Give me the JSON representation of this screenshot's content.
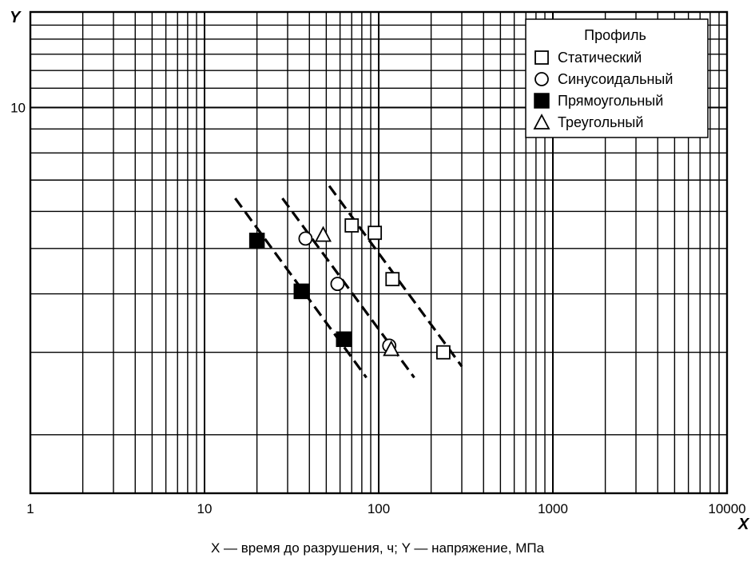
{
  "chart_data": {
    "type": "scatter",
    "title": "",
    "xlabel": "X",
    "ylabel": "Y",
    "x_scale": "log",
    "y_scale": "log",
    "xlim": [
      1,
      10000
    ],
    "ylim": [
      1.5,
      16
    ],
    "x_ticks": [
      {
        "value": 1,
        "label": "1"
      },
      {
        "value": 10,
        "label": "10"
      },
      {
        "value": 100,
        "label": "100"
      },
      {
        "value": 1000,
        "label": "1000"
      },
      {
        "value": 10000,
        "label": "10000"
      }
    ],
    "y_ticks": [
      {
        "value": 10,
        "label": "10"
      }
    ],
    "grid": true,
    "legend_title": "Профиль",
    "legend_position": "top-right",
    "series": [
      {
        "name": "Статический",
        "marker": "square-open",
        "x": [
          70,
          95,
          120,
          235
        ],
        "y": [
          5.6,
          5.4,
          4.3,
          3.0
        ]
      },
      {
        "name": "Синусоидальный",
        "marker": "circle-open",
        "x": [
          38,
          58,
          115
        ],
        "y": [
          5.25,
          4.2,
          3.1
        ]
      },
      {
        "name": "Прямоугольный",
        "marker": "square-filled",
        "x": [
          20,
          36,
          63
        ],
        "y": [
          5.2,
          4.05,
          3.2
        ]
      },
      {
        "name": "Треугольный",
        "marker": "triangle-open",
        "x": [
          48,
          118
        ],
        "y": [
          5.35,
          3.05
        ]
      }
    ],
    "trend_lines": [
      {
        "x": [
          15,
          85
        ],
        "y": [
          6.4,
          2.65
        ]
      },
      {
        "x": [
          28,
          160
        ],
        "y": [
          6.4,
          2.65
        ]
      },
      {
        "x": [
          52,
          300
        ],
        "y": [
          6.8,
          2.8
        ]
      }
    ]
  },
  "caption": "X — время до разрушения, ч; Y — напряжение, МПа"
}
